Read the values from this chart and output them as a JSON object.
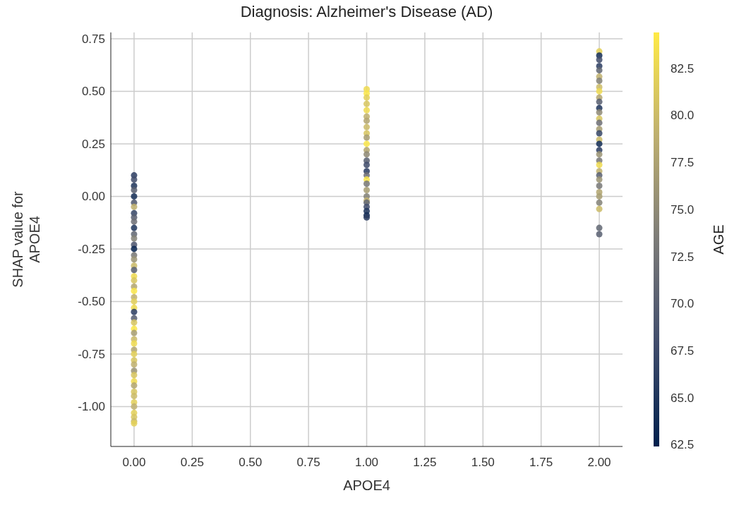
{
  "chart_data": {
    "type": "scatter",
    "title": "Diagnosis: Alzheimer's Disease (AD)",
    "xlabel": "APOE4",
    "ylabel": "SHAP value for APOE4",
    "clabel": "AGE",
    "x": [
      0,
      0,
      0,
      0,
      0,
      0,
      0,
      0,
      0,
      0,
      0,
      0,
      0,
      0,
      0,
      0,
      0,
      0,
      0,
      0,
      0,
      0,
      0,
      0,
      0,
      0,
      0,
      0,
      0,
      0,
      0,
      0,
      0,
      0,
      0,
      0,
      0,
      0,
      0,
      0,
      0,
      0,
      0,
      0,
      0,
      0,
      0,
      0,
      0,
      1,
      1,
      1,
      1,
      1,
      1,
      1,
      1,
      1,
      1,
      1,
      1,
      1,
      1,
      1,
      1,
      1,
      1,
      1,
      1,
      1,
      1,
      1,
      1,
      1,
      1,
      1,
      2,
      2,
      2,
      2,
      2,
      2,
      2,
      2,
      2,
      2,
      2,
      2,
      2,
      2,
      2,
      2,
      2,
      2,
      2,
      2,
      2,
      2,
      2,
      2,
      2,
      2,
      2,
      2,
      2,
      2,
      2,
      2,
      2
    ],
    "values": [
      0.1,
      0.08,
      0.05,
      0.03,
      0.0,
      -0.03,
      -0.05,
      -0.08,
      -0.1,
      -0.12,
      -0.15,
      -0.18,
      -0.2,
      -0.23,
      -0.25,
      -0.28,
      -0.3,
      -0.33,
      -0.35,
      -0.38,
      -0.4,
      -0.43,
      -0.45,
      -0.48,
      -0.5,
      -0.53,
      -0.55,
      -0.58,
      -0.6,
      -0.63,
      -0.65,
      -0.68,
      -0.7,
      -0.73,
      -0.75,
      -0.78,
      -0.8,
      -0.83,
      -0.85,
      -0.88,
      -0.9,
      -0.93,
      -0.95,
      -0.98,
      -1.0,
      -1.03,
      -1.05,
      -1.07,
      -1.08,
      0.51,
      0.49,
      0.47,
      0.44,
      0.41,
      0.38,
      0.36,
      0.33,
      0.3,
      0.28,
      0.25,
      0.22,
      0.2,
      0.17,
      0.15,
      0.12,
      0.1,
      0.08,
      0.06,
      0.03,
      0.0,
      -0.02,
      -0.03,
      -0.05,
      -0.07,
      -0.09,
      -0.1,
      0.69,
      0.67,
      0.65,
      0.62,
      0.6,
      0.57,
      0.55,
      0.52,
      0.5,
      0.47,
      0.45,
      0.42,
      0.4,
      0.37,
      0.35,
      0.32,
      0.3,
      0.27,
      0.25,
      0.22,
      0.2,
      0.17,
      0.15,
      0.12,
      0.1,
      0.08,
      0.05,
      0.02,
      0.0,
      -0.03,
      -0.06,
      -0.15,
      -0.18
    ],
    "cvalues": [
      66,
      68,
      65,
      70,
      64,
      69,
      79,
      67,
      70,
      72,
      65,
      71,
      74,
      69,
      63,
      73,
      76,
      80,
      70,
      83,
      81,
      78,
      84,
      79,
      82,
      83,
      66,
      70,
      81,
      84,
      77,
      80,
      83,
      78,
      82,
      81,
      79,
      76,
      81,
      83,
      78,
      81,
      80,
      82,
      79,
      82,
      81,
      80,
      82,
      83,
      84,
      82,
      81,
      83,
      79,
      78,
      80,
      81,
      77,
      84,
      78,
      75,
      70,
      68,
      66,
      72,
      84,
      73,
      77,
      74,
      79,
      71,
      68,
      65,
      64,
      66,
      82,
      64,
      68,
      66,
      71,
      79,
      74,
      80,
      83,
      78,
      70,
      65,
      75,
      81,
      72,
      77,
      67,
      80,
      64,
      66,
      76,
      73,
      83,
      79,
      70,
      76,
      73,
      78,
      77,
      74,
      80,
      71,
      70
    ],
    "xlim": [
      -0.1,
      2.1
    ],
    "xticks": [
      {
        "value": 0,
        "label": "0.00"
      },
      {
        "value": 0.25,
        "label": "0.25"
      },
      {
        "value": 0.5,
        "label": "0.50"
      },
      {
        "value": 0.75,
        "label": "0.75"
      },
      {
        "value": 1,
        "label": "1.00"
      },
      {
        "value": 1.25,
        "label": "1.25"
      },
      {
        "value": 1.5,
        "label": "1.50"
      },
      {
        "value": 1.75,
        "label": "1.75"
      },
      {
        "value": 2,
        "label": "2.00"
      }
    ],
    "ylim": [
      -1.19,
      0.78
    ],
    "yticks": [
      {
        "value": -1,
        "label": "-1.00"
      },
      {
        "value": -0.75,
        "label": "-0.75"
      },
      {
        "value": -0.5,
        "label": "-0.50"
      },
      {
        "value": -0.25,
        "label": "-0.25"
      },
      {
        "value": 0,
        "label": "0.00"
      },
      {
        "value": 0.25,
        "label": "0.25"
      },
      {
        "value": 0.5,
        "label": "0.50"
      },
      {
        "value": 0.75,
        "label": "0.75"
      }
    ],
    "clim": [
      62.4,
      84.4
    ],
    "cticks": [
      {
        "value": 62.5,
        "label": "62.5"
      },
      {
        "value": 65,
        "label": "65.0"
      },
      {
        "value": 67.5,
        "label": "67.5"
      },
      {
        "value": 70,
        "label": "70.0"
      },
      {
        "value": 72.5,
        "label": "72.5"
      },
      {
        "value": 75,
        "label": "75.0"
      },
      {
        "value": 77.5,
        "label": "77.5"
      },
      {
        "value": 80,
        "label": "80.0"
      },
      {
        "value": 82.5,
        "label": "82.5"
      }
    ],
    "grid": true,
    "marker": "circle"
  }
}
